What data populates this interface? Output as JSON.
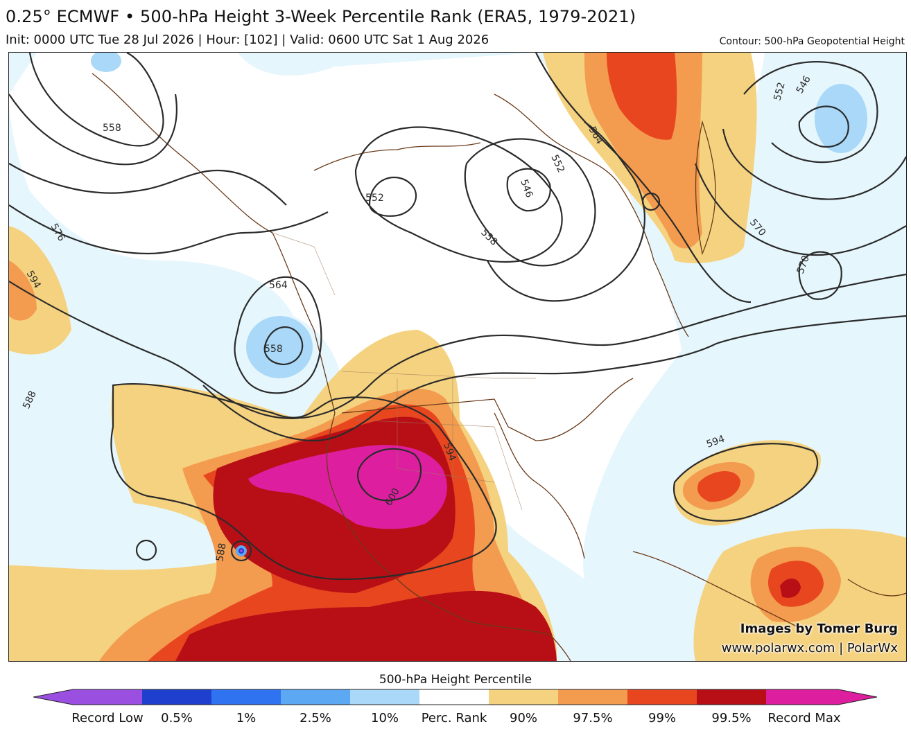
{
  "header": {
    "title": "0.25° ECMWF • 500-hPa Height 3-Week Percentile Rank (ERA5, 1979-2021)",
    "subtitle": "Init: 0000 UTC Tue 28 Jul 2026 | Hour: [102] | Valid: 0600 UTC Sat 1 Aug 2026",
    "contour_note": "Contour: 500-hPa Geopotential Height"
  },
  "map": {
    "contour_labels": [
      "558",
      "576",
      "594",
      "564",
      "558",
      "552",
      "546",
      "552",
      "558",
      "564",
      "570",
      "570",
      "552",
      "546",
      "588",
      "594",
      "600",
      "588",
      "594"
    ],
    "credit_line1": "Images by Tomer Burg",
    "credit_line2": "www.polarwx.com | PolarWx"
  },
  "legend": {
    "title": "500-hPa Height Percentile",
    "ticks": [
      "Record Low",
      "0.5%",
      "1%",
      "2.5%",
      "10%",
      "Perc. Rank",
      "90%",
      "97.5%",
      "99%",
      "99.5%",
      "Record Max"
    ],
    "colors": {
      "record_low": "#9b4fe0",
      "p0_5": "#1f3fcf",
      "p1": "#2f73f0",
      "p2_5": "#5da8f2",
      "p10": "#a9d8f8",
      "neutral_low": "#e6f6fd",
      "neutral_high": "#ffffff",
      "p90": "#f5d27f",
      "p97_5": "#f39b4e",
      "p99": "#e8461f",
      "p99_5": "#b80f16",
      "record_max": "#dd1f9f"
    }
  }
}
